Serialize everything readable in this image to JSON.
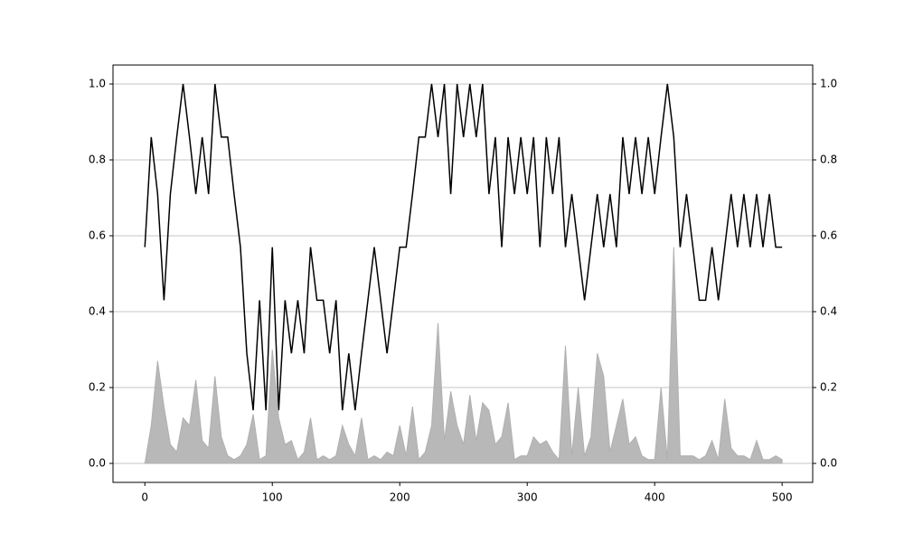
{
  "chart_data": {
    "type": "line",
    "x": [
      0,
      5,
      10,
      15,
      20,
      25,
      30,
      35,
      40,
      45,
      50,
      55,
      60,
      65,
      70,
      75,
      80,
      85,
      90,
      95,
      100,
      105,
      110,
      115,
      120,
      125,
      130,
      135,
      140,
      145,
      150,
      155,
      160,
      165,
      170,
      175,
      180,
      185,
      190,
      195,
      200,
      205,
      210,
      215,
      220,
      225,
      230,
      235,
      240,
      245,
      250,
      255,
      260,
      265,
      270,
      275,
      280,
      285,
      290,
      295,
      300,
      305,
      310,
      315,
      320,
      325,
      330,
      335,
      340,
      345,
      350,
      355,
      360,
      365,
      370,
      375,
      380,
      385,
      390,
      395,
      400,
      405,
      410,
      415,
      420,
      425,
      430,
      435,
      440,
      445,
      450,
      455,
      460,
      465,
      470,
      475,
      480,
      485,
      490,
      495,
      500
    ],
    "series": [
      {
        "color": "#000000",
        "values": [
          0.57,
          0.86,
          0.71,
          0.43,
          0.71,
          0.86,
          1,
          0.86,
          0.71,
          0.86,
          0.71,
          1,
          0.86,
          0.86,
          0.71,
          0.57,
          0.29,
          0.14,
          0.43,
          0.14,
          0.57,
          0.14,
          0.43,
          0.29,
          0.43,
          0.29,
          0.57,
          0.43,
          0.43,
          0.29,
          0.43,
          0.14,
          0.29,
          0.14,
          0.29,
          0.43,
          0.57,
          0.43,
          0.29,
          0.43,
          0.57,
          0.57,
          0.71,
          0.86,
          0.86,
          1,
          0.86,
          1,
          0.71,
          1,
          0.86,
          1,
          0.86,
          1,
          0.71,
          0.86,
          0.57,
          0.86,
          0.71,
          0.86,
          0.71,
          0.86,
          0.57,
          0.86,
          0.71,
          0.86,
          0.57,
          0.71,
          0.57,
          0.43,
          0.57,
          0.71,
          0.57,
          0.71,
          0.57,
          0.86,
          0.71,
          0.86,
          0.71,
          0.86,
          0.71,
          0.86,
          1,
          0.86,
          0.57,
          0.71,
          0.57,
          0.43,
          0.43,
          0.57,
          0.43,
          0.57,
          0.71,
          0.57,
          0.71,
          0.57,
          0.71,
          0.57,
          0.71,
          0.57,
          0.57
        ]
      },
      {
        "color": "#b0b0b0",
        "area": true,
        "axis": "y2",
        "values": [
          0,
          0.1,
          0.27,
          0.15,
          0.05,
          0.03,
          0.12,
          0.1,
          0.22,
          0.06,
          0.04,
          0.23,
          0.07,
          0.02,
          0.01,
          0.02,
          0.05,
          0.13,
          0.01,
          0.02,
          0.3,
          0.12,
          0.05,
          0.06,
          0.01,
          0.03,
          0.12,
          0.01,
          0.02,
          0.01,
          0.02,
          0.1,
          0.05,
          0.02,
          0.12,
          0.01,
          0.02,
          0.01,
          0.03,
          0.02,
          0.1,
          0.02,
          0.15,
          0.01,
          0.03,
          0.1,
          0.37,
          0.06,
          0.19,
          0.1,
          0.05,
          0.18,
          0.06,
          0.16,
          0.14,
          0.05,
          0.07,
          0.16,
          0.01,
          0.02,
          0.02,
          0.07,
          0.05,
          0.06,
          0.03,
          0.01,
          0.31,
          0.02,
          0.2,
          0.02,
          0.07,
          0.29,
          0.23,
          0.03,
          0.1,
          0.17,
          0.05,
          0.07,
          0.02,
          0.01,
          0.01,
          0.2,
          0.01,
          0.57,
          0.02,
          0.02,
          0.02,
          0.01,
          0.02,
          0.06,
          0.01,
          0.17,
          0.04,
          0.02,
          0.02,
          0.01,
          0.06,
          0.01,
          0.01,
          0.02,
          0.01
        ]
      }
    ],
    "xlim": [
      -25,
      524
    ],
    "xticks": [
      0,
      100,
      200,
      300,
      400,
      500
    ],
    "ylim": [
      -0.05,
      1.05
    ],
    "yticks": [
      {
        "value": 0,
        "label": "0.0"
      },
      0.2,
      0.4,
      0.6,
      0.8,
      {
        "value": 1,
        "label": "1.0"
      }
    ],
    "y2lim": [
      -0.05,
      1.05
    ],
    "y2ticks": [
      {
        "value": 0,
        "label": "0.0"
      },
      0.2,
      0.4,
      0.6,
      0.8,
      {
        "value": 1,
        "label": "1.0"
      }
    ],
    "grid": true
  }
}
